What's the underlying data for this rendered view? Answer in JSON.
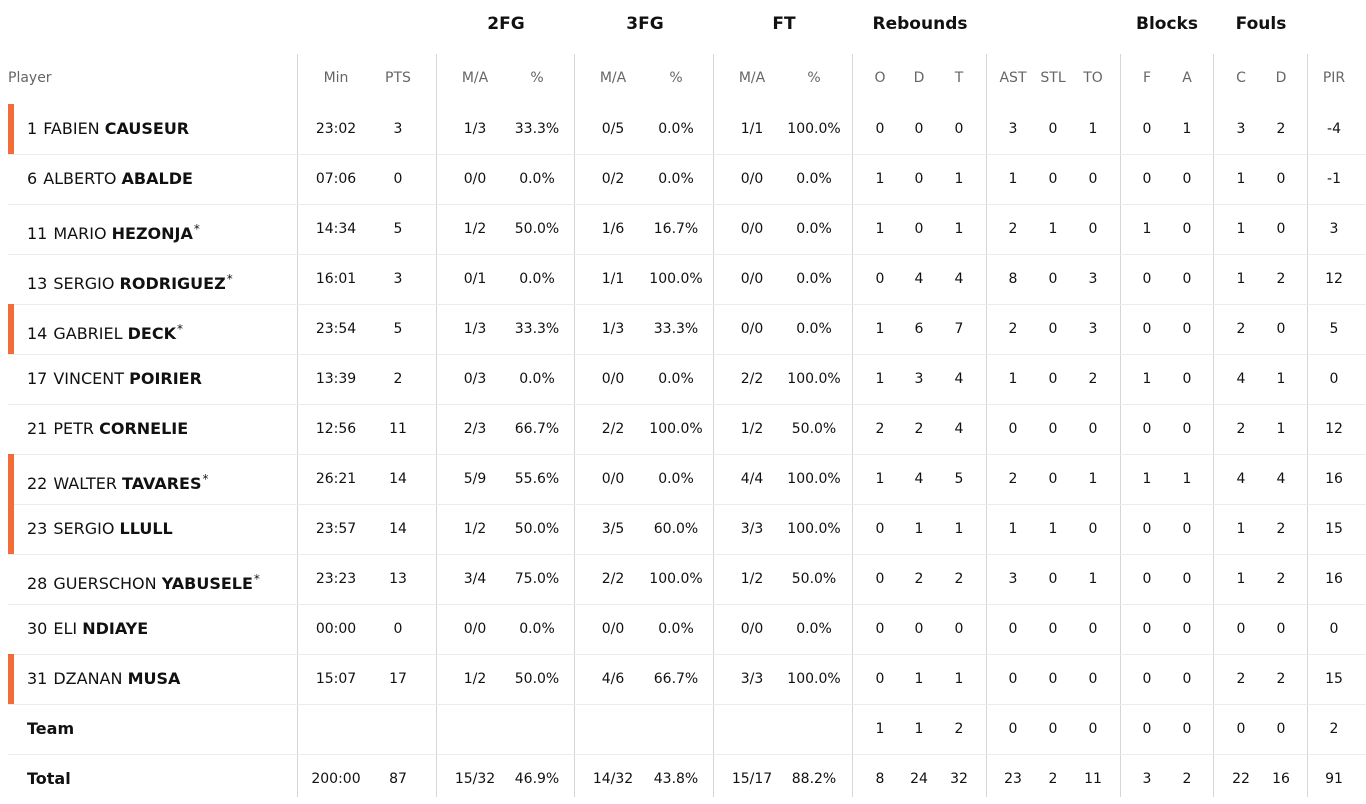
{
  "groups": [
    {
      "key": "2fg",
      "label": "2FG"
    },
    {
      "key": "3fg",
      "label": "3FG"
    },
    {
      "key": "ft",
      "label": "FT"
    },
    {
      "key": "reb",
      "label": "Rebounds"
    },
    {
      "key": "blk",
      "label": "Blocks"
    },
    {
      "key": "fouls",
      "label": "Fouls"
    }
  ],
  "player_header": "Player",
  "columns": [
    "Min",
    "PTS",
    "M/A",
    "%",
    "M/A",
    "%",
    "M/A",
    "%",
    "O",
    "D",
    "T",
    "AST",
    "STL",
    "TO",
    "F",
    "A",
    "C",
    "D",
    "PIR"
  ],
  "players": [
    {
      "number": "1",
      "first": "FABIEN",
      "last": "CAUSEUR",
      "starter": false,
      "marker": true,
      "stats": [
        "23:02",
        "3",
        "1/3",
        "33.3%",
        "0/5",
        "0.0%",
        "1/1",
        "100.0%",
        "0",
        "0",
        "0",
        "3",
        "0",
        "1",
        "0",
        "1",
        "3",
        "2",
        "-4"
      ]
    },
    {
      "number": "6",
      "first": "ALBERTO",
      "last": "ABALDE",
      "starter": false,
      "marker": false,
      "stats": [
        "07:06",
        "0",
        "0/0",
        "0.0%",
        "0/2",
        "0.0%",
        "0/0",
        "0.0%",
        "1",
        "0",
        "1",
        "1",
        "0",
        "0",
        "0",
        "0",
        "1",
        "0",
        "-1"
      ]
    },
    {
      "number": "11",
      "first": "MARIO",
      "last": "HEZONJA",
      "starter": true,
      "marker": false,
      "stats": [
        "14:34",
        "5",
        "1/2",
        "50.0%",
        "1/6",
        "16.7%",
        "0/0",
        "0.0%",
        "1",
        "0",
        "1",
        "2",
        "1",
        "0",
        "1",
        "0",
        "1",
        "0",
        "3"
      ]
    },
    {
      "number": "13",
      "first": "SERGIO",
      "last": "RODRIGUEZ",
      "starter": true,
      "marker": false,
      "stats": [
        "16:01",
        "3",
        "0/1",
        "0.0%",
        "1/1",
        "100.0%",
        "0/0",
        "0.0%",
        "0",
        "4",
        "4",
        "8",
        "0",
        "3",
        "0",
        "0",
        "1",
        "2",
        "12"
      ]
    },
    {
      "number": "14",
      "first": "GABRIEL",
      "last": "DECK",
      "starter": true,
      "marker": true,
      "stats": [
        "23:54",
        "5",
        "1/3",
        "33.3%",
        "1/3",
        "33.3%",
        "0/0",
        "0.0%",
        "1",
        "6",
        "7",
        "2",
        "0",
        "3",
        "0",
        "0",
        "2",
        "0",
        "5"
      ]
    },
    {
      "number": "17",
      "first": "VINCENT",
      "last": "POIRIER",
      "starter": false,
      "marker": false,
      "stats": [
        "13:39",
        "2",
        "0/3",
        "0.0%",
        "0/0",
        "0.0%",
        "2/2",
        "100.0%",
        "1",
        "3",
        "4",
        "1",
        "0",
        "2",
        "1",
        "0",
        "4",
        "1",
        "0"
      ]
    },
    {
      "number": "21",
      "first": "PETR",
      "last": "CORNELIE",
      "starter": false,
      "marker": false,
      "stats": [
        "12:56",
        "11",
        "2/3",
        "66.7%",
        "2/2",
        "100.0%",
        "1/2",
        "50.0%",
        "2",
        "2",
        "4",
        "0",
        "0",
        "0",
        "0",
        "0",
        "2",
        "1",
        "12"
      ]
    },
    {
      "number": "22",
      "first": "WALTER",
      "last": "TAVARES",
      "starter": true,
      "marker": true,
      "stats": [
        "26:21",
        "14",
        "5/9",
        "55.6%",
        "0/0",
        "0.0%",
        "4/4",
        "100.0%",
        "1",
        "4",
        "5",
        "2",
        "0",
        "1",
        "1",
        "1",
        "4",
        "4",
        "16"
      ]
    },
    {
      "number": "23",
      "first": "SERGIO",
      "last": "LLULL",
      "starter": false,
      "marker": true,
      "stats": [
        "23:57",
        "14",
        "1/2",
        "50.0%",
        "3/5",
        "60.0%",
        "3/3",
        "100.0%",
        "0",
        "1",
        "1",
        "1",
        "1",
        "0",
        "0",
        "0",
        "1",
        "2",
        "15"
      ]
    },
    {
      "number": "28",
      "first": "GUERSCHON",
      "last": "YABUSELE",
      "starter": true,
      "marker": false,
      "stats": [
        "23:23",
        "13",
        "3/4",
        "75.0%",
        "2/2",
        "100.0%",
        "1/2",
        "50.0%",
        "0",
        "2",
        "2",
        "3",
        "0",
        "1",
        "0",
        "0",
        "1",
        "2",
        "16"
      ]
    },
    {
      "number": "30",
      "first": "ELI",
      "last": "NDIAYE",
      "starter": false,
      "marker": false,
      "stats": [
        "00:00",
        "0",
        "0/0",
        "0.0%",
        "0/0",
        "0.0%",
        "0/0",
        "0.0%",
        "0",
        "0",
        "0",
        "0",
        "0",
        "0",
        "0",
        "0",
        "0",
        "0",
        "0"
      ]
    },
    {
      "number": "31",
      "first": "DZANAN",
      "last": "MUSA",
      "starter": false,
      "marker": true,
      "stats": [
        "15:07",
        "17",
        "1/2",
        "50.0%",
        "4/6",
        "66.7%",
        "3/3",
        "100.0%",
        "0",
        "1",
        "1",
        "0",
        "0",
        "0",
        "0",
        "0",
        "2",
        "2",
        "15"
      ]
    }
  ],
  "team_row": {
    "label": "Team",
    "stats": [
      "",
      "",
      "",
      "",
      "",
      "",
      "",
      "",
      "1",
      "1",
      "2",
      "0",
      "0",
      "0",
      "0",
      "0",
      "0",
      "0",
      "2"
    ]
  },
  "total_row": {
    "label": "Total",
    "stats": [
      "200:00",
      "87",
      "15/32",
      "46.9%",
      "14/32",
      "43.8%",
      "15/17",
      "88.2%",
      "8",
      "24",
      "32",
      "23",
      "2",
      "11",
      "3",
      "2",
      "22",
      "16",
      "91"
    ]
  },
  "starter_mark": "*",
  "colors": {
    "marker": "#f26c3a",
    "divider": "#d6d6d6",
    "row_line": "#ececec"
  }
}
